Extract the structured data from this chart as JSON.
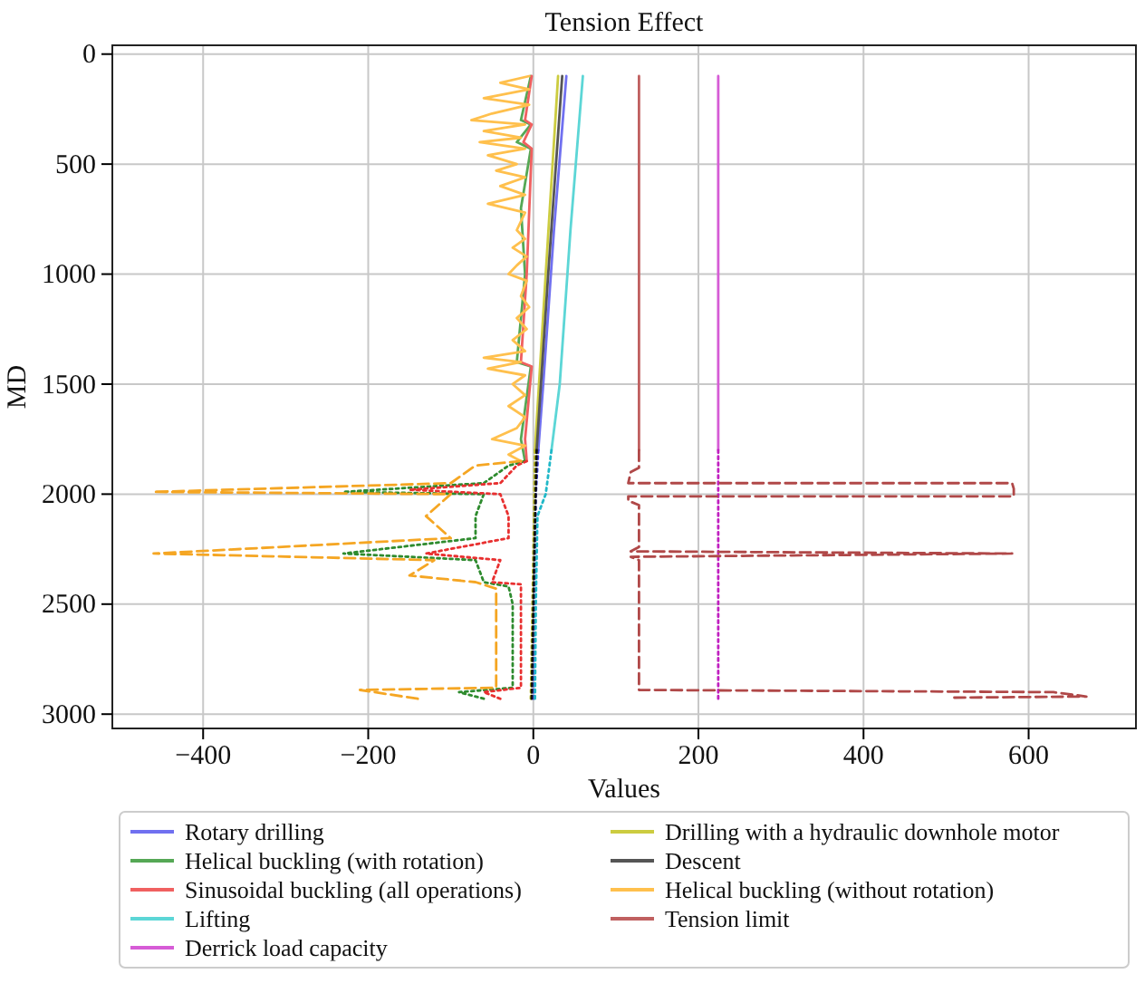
{
  "chart_data": {
    "type": "line",
    "title": "Tension Effect",
    "xlabel": "Values",
    "ylabel": "MD",
    "xlim": [
      -510,
      730
    ],
    "xticks": [
      -400,
      -200,
      0,
      200,
      400,
      600
    ],
    "ylim": [
      3065,
      -40
    ],
    "yticks": [
      0,
      500,
      1000,
      1500,
      2000,
      2500,
      3000
    ],
    "grid": true,
    "legend": "bottom",
    "series": [
      {
        "name": "Rotary drilling",
        "color": "#7070f0",
        "line_style": "solid",
        "x": [
          40,
          25,
          12,
          6
        ],
        "values": [
          100,
          800,
          1500,
          1800
        ]
      },
      {
        "color": "#4040e0",
        "line_style": "dotted",
        "x": [
          6,
          3,
          1,
          0
        ],
        "values": [
          1800,
          2000,
          2500,
          2930
        ]
      },
      {
        "name": "Helical buckling (with rotation)",
        "color": "#55a855",
        "line_style": "solid",
        "x": [
          -3,
          -15,
          -3,
          -20,
          -3,
          -15,
          -10,
          -20,
          -3,
          -15,
          -10
        ],
        "values": [
          100,
          300,
          320,
          400,
          430,
          700,
          1000,
          1400,
          1420,
          1750,
          1850
        ]
      },
      {
        "color": "#2e8b2e",
        "line_style": "dotted",
        "x": [
          -10,
          -30,
          -60,
          -230,
          -60,
          -70,
          -70,
          -230,
          -70,
          -60,
          -30,
          -25,
          -25,
          -90,
          -60
        ],
        "values": [
          1850,
          1870,
          1950,
          1990,
          2000,
          2100,
          2200,
          2270,
          2300,
          2400,
          2420,
          2500,
          2880,
          2900,
          2930
        ]
      },
      {
        "name": "Sinusoidal buckling (all operations)",
        "color": "#f06060",
        "line_style": "solid",
        "x": [
          -2,
          -10,
          -2,
          -12,
          -2,
          -8,
          -15,
          -2,
          -10,
          -8
        ],
        "values": [
          100,
          300,
          320,
          400,
          430,
          1000,
          1400,
          1420,
          1750,
          1850
        ]
      },
      {
        "color": "#e83030",
        "line_style": "dotted",
        "x": [
          -8,
          -20,
          -40,
          -150,
          -40,
          -30,
          -30,
          -130,
          -40,
          -50,
          -15,
          -15,
          -60,
          -40
        ],
        "values": [
          1850,
          1870,
          1950,
          1980,
          2000,
          2100,
          2200,
          2270,
          2300,
          2400,
          2410,
          2880,
          2900,
          2930
        ]
      },
      {
        "name": "Lifting",
        "color": "#5cd6d6",
        "line_style": "solid",
        "x": [
          60,
          45,
          32,
          22
        ],
        "values": [
          100,
          800,
          1500,
          1800
        ]
      },
      {
        "color": "#20b8c8",
        "line_style": "dotted",
        "x": [
          22,
          15,
          5,
          3,
          2
        ],
        "values": [
          1800,
          2000,
          2100,
          2500,
          2930
        ]
      },
      {
        "name": "Derrick load capacity",
        "color": "#d65cd6",
        "line_style": "solid",
        "x": [
          224,
          224
        ],
        "values": [
          100,
          1800
        ]
      },
      {
        "color": "#c020c0",
        "line_style": "dotted",
        "x": [
          224,
          224
        ],
        "values": [
          1800,
          2930
        ]
      },
      {
        "name": "Drilling with a hydraulic downhole motor",
        "color": "#cccc40",
        "line_style": "solid",
        "x": [
          30,
          15,
          2
        ],
        "values": [
          100,
          1000,
          1800
        ]
      },
      {
        "color": "#b8b820",
        "line_style": "dotted",
        "x": [
          2,
          0,
          -3
        ],
        "values": [
          1800,
          2300,
          2930
        ]
      },
      {
        "name": "Descent",
        "color": "#555555",
        "line_style": "solid",
        "x": [
          35,
          18,
          4
        ],
        "values": [
          100,
          1000,
          1800
        ]
      },
      {
        "color": "#111111",
        "line_style": "dotted",
        "x": [
          4,
          1,
          -2
        ],
        "values": [
          1800,
          2300,
          2930
        ]
      },
      {
        "name": "Helical buckling (without rotation)",
        "color": "#ffc04d",
        "line_style": "solid",
        "x": [
          -5,
          -40,
          -5,
          -60,
          -5,
          -50,
          -75,
          -10,
          -60,
          -15,
          -65,
          -10,
          -55,
          -20,
          -45,
          -10,
          -40,
          -10,
          -55,
          -10,
          -15,
          -20,
          -10,
          -25,
          -8,
          -20,
          -30,
          -8,
          -15,
          -5,
          -20,
          -8,
          -25,
          -10,
          -60,
          -15,
          -55,
          -10,
          -25,
          -10,
          -30,
          -10,
          -20,
          -50,
          -10,
          -30,
          -15
        ],
        "values": [
          100,
          130,
          160,
          200,
          230,
          270,
          300,
          320,
          350,
          380,
          400,
          430,
          460,
          500,
          530,
          560,
          600,
          640,
          680,
          720,
          760,
          800,
          840,
          880,
          920,
          960,
          1000,
          1030,
          1100,
          1150,
          1200,
          1250,
          1300,
          1350,
          1380,
          1400,
          1430,
          1460,
          1500,
          1550,
          1600,
          1650,
          1700,
          1750,
          1780,
          1820,
          1850
        ]
      },
      {
        "color": "#f5a623",
        "line_style": "dashed",
        "x": [
          -15,
          -70,
          -100,
          -460,
          -100,
          -130,
          -100,
          -460,
          -120,
          -150,
          -70,
          -45,
          -45,
          -210,
          -140
        ],
        "values": [
          1850,
          1870,
          1950,
          1990,
          2000,
          2100,
          2200,
          2270,
          2300,
          2370,
          2400,
          2430,
          2880,
          2890,
          2930
        ]
      },
      {
        "name": "Tension limit",
        "color": "#c06060",
        "line_style": "solid",
        "x": [
          128,
          128
        ],
        "values": [
          100,
          1800
        ]
      },
      {
        "color": "#b04848",
        "line_style": "dashed",
        "x": [
          128,
          128,
          118,
          115,
          580,
          582,
          582,
          115,
          115,
          128,
          128,
          118,
          580,
          118,
          128,
          128,
          630,
          670,
          510
        ],
        "values": [
          1800,
          1880,
          1900,
          1950,
          1950,
          1975,
          2010,
          2010,
          2030,
          2050,
          2240,
          2260,
          2270,
          2285,
          2300,
          2890,
          2900,
          2920,
          2925
        ]
      }
    ]
  }
}
